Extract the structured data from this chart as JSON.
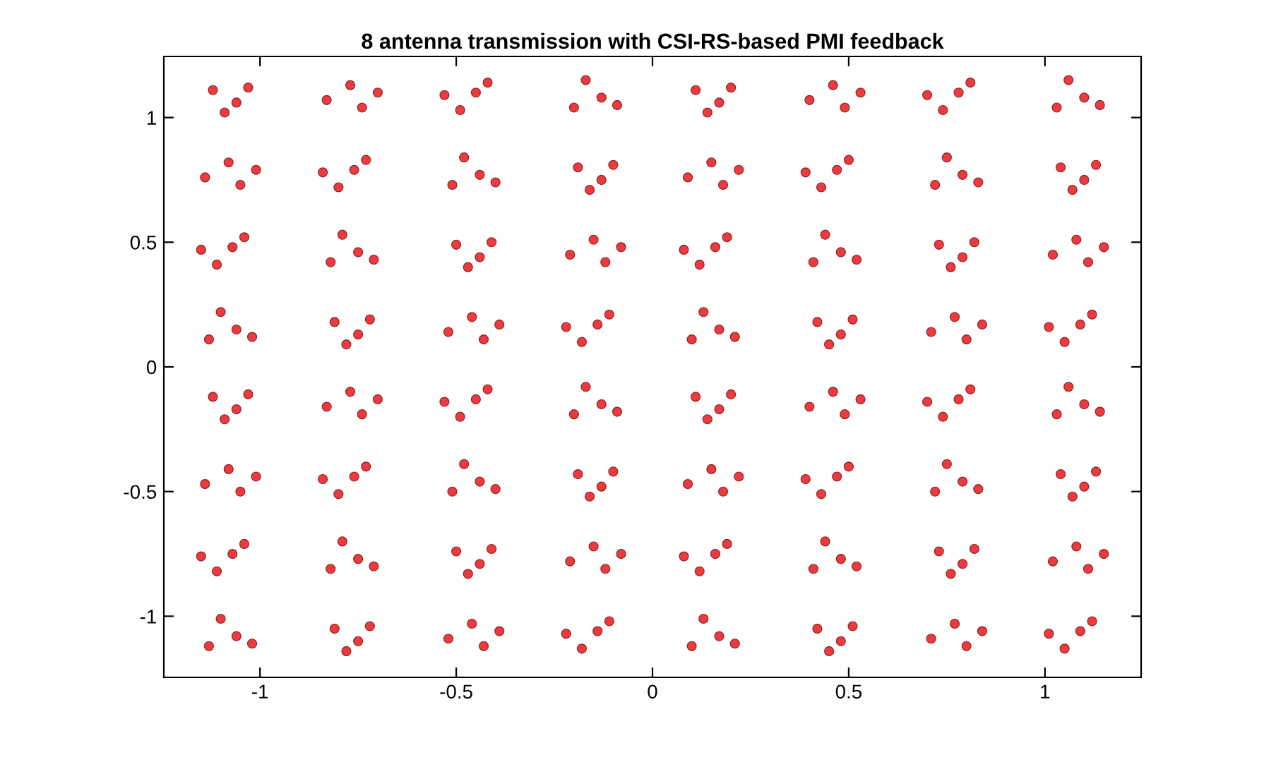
{
  "chart_data": {
    "type": "scatter",
    "title": "8 antenna transmission with CSI-RS-based PMI feedback",
    "xlim": [
      -1.245,
      1.245
    ],
    "ylim": [
      -1.245,
      1.245
    ],
    "xticks": [
      -1,
      -0.5,
      0,
      0.5,
      1
    ],
    "yticks": [
      -1,
      -0.5,
      0,
      0.5,
      1
    ],
    "grid": false,
    "legend": false,
    "marker": "circle",
    "series": [
      {
        "color": "#e8262b",
        "x": [
          -1.12,
          -1.06,
          -1.03,
          -1.09,
          -0.83,
          -0.77,
          -0.74,
          -0.7,
          -0.49,
          -0.45,
          -0.42,
          -0.53,
          -0.09,
          -0.17,
          -0.13,
          -0.2,
          0.11,
          0.17,
          0.2,
          0.14,
          0.4,
          0.46,
          0.49,
          0.53,
          0.74,
          0.78,
          0.81,
          0.7,
          1.14,
          1.06,
          1.1,
          1.03,
          -1.14,
          -1.08,
          -1.05,
          -1.01,
          -0.8,
          -0.76,
          -0.73,
          -0.84,
          -0.4,
          -0.48,
          -0.44,
          -0.51,
          -0.19,
          -0.13,
          -0.1,
          -0.16,
          0.09,
          0.15,
          0.18,
          0.22,
          0.43,
          0.47,
          0.5,
          0.39,
          0.83,
          0.75,
          0.79,
          0.72,
          1.04,
          1.1,
          1.13,
          1.07,
          -1.11,
          -1.07,
          -1.04,
          -1.15,
          -0.71,
          -0.79,
          -0.75,
          -0.82,
          -0.5,
          -0.44,
          -0.41,
          -0.47,
          -0.21,
          -0.15,
          -0.12,
          -0.08,
          0.12,
          0.16,
          0.19,
          0.08,
          0.52,
          0.44,
          0.48,
          0.41,
          0.73,
          0.79,
          0.82,
          0.76,
          1.02,
          1.08,
          1.11,
          1.15,
          -1.02,
          -1.1,
          -1.06,
          -1.13,
          -0.81,
          -0.75,
          -0.72,
          -0.78,
          -0.52,
          -0.46,
          -0.43,
          -0.39,
          -0.18,
          -0.14,
          -0.11,
          -0.22,
          0.21,
          0.13,
          0.17,
          0.1,
          0.42,
          0.48,
          0.51,
          0.45,
          0.71,
          0.77,
          0.8,
          0.84,
          1.05,
          1.09,
          1.12,
          1.01,
          -1.12,
          -1.06,
          -1.03,
          -1.09,
          -0.83,
          -0.77,
          -0.74,
          -0.7,
          -0.49,
          -0.45,
          -0.42,
          -0.53,
          -0.09,
          -0.17,
          -0.13,
          -0.2,
          0.11,
          0.17,
          0.2,
          0.14,
          0.4,
          0.46,
          0.49,
          0.53,
          0.74,
          0.78,
          0.81,
          0.7,
          1.14,
          1.06,
          1.1,
          1.03,
          -1.14,
          -1.08,
          -1.05,
          -1.01,
          -0.8,
          -0.76,
          -0.73,
          -0.84,
          -0.4,
          -0.48,
          -0.44,
          -0.51,
          -0.19,
          -0.13,
          -0.1,
          -0.16,
          0.09,
          0.15,
          0.18,
          0.22,
          0.43,
          0.47,
          0.5,
          0.39,
          0.83,
          0.75,
          0.79,
          0.72,
          1.04,
          1.1,
          1.13,
          1.07,
          -1.11,
          -1.07,
          -1.04,
          -1.15,
          -0.71,
          -0.79,
          -0.75,
          -0.82,
          -0.5,
          -0.44,
          -0.41,
          -0.47,
          -0.21,
          -0.15,
          -0.12,
          -0.08,
          0.12,
          0.16,
          0.19,
          0.08,
          0.52,
          0.44,
          0.48,
          0.41,
          0.73,
          0.79,
          0.82,
          0.76,
          1.02,
          1.08,
          1.11,
          1.15,
          -1.02,
          -1.1,
          -1.06,
          -1.13,
          -0.81,
          -0.75,
          -0.72,
          -0.78,
          -0.52,
          -0.46,
          -0.43,
          -0.39,
          -0.18,
          -0.14,
          -0.11,
          -0.22,
          0.21,
          0.13,
          0.17,
          0.1,
          0.42,
          0.48,
          0.51,
          0.45,
          0.71,
          0.77,
          0.8,
          0.84,
          1.05,
          1.09,
          1.12,
          1.01
        ],
        "values": [
          1.11,
          1.06,
          1.12,
          1.02,
          1.07,
          1.13,
          1.04,
          1.1,
          1.03,
          1.1,
          1.14,
          1.09,
          1.05,
          1.15,
          1.08,
          1.04,
          1.11,
          1.06,
          1.12,
          1.02,
          1.07,
          1.13,
          1.04,
          1.1,
          1.03,
          1.1,
          1.14,
          1.09,
          1.05,
          1.15,
          1.08,
          1.04,
          0.76,
          0.82,
          0.73,
          0.79,
          0.72,
          0.79,
          0.83,
          0.78,
          0.74,
          0.84,
          0.77,
          0.73,
          0.8,
          0.75,
          0.81,
          0.71,
          0.76,
          0.82,
          0.73,
          0.79,
          0.72,
          0.79,
          0.83,
          0.78,
          0.74,
          0.84,
          0.77,
          0.73,
          0.8,
          0.75,
          0.81,
          0.71,
          0.41,
          0.48,
          0.52,
          0.47,
          0.43,
          0.53,
          0.46,
          0.42,
          0.49,
          0.44,
          0.5,
          0.4,
          0.45,
          0.51,
          0.42,
          0.48,
          0.41,
          0.48,
          0.52,
          0.47,
          0.43,
          0.53,
          0.46,
          0.42,
          0.49,
          0.44,
          0.5,
          0.4,
          0.45,
          0.51,
          0.42,
          0.48,
          0.12,
          0.22,
          0.15,
          0.11,
          0.18,
          0.13,
          0.19,
          0.09,
          0.14,
          0.2,
          0.11,
          0.17,
          0.1,
          0.17,
          0.21,
          0.16,
          0.12,
          0.22,
          0.15,
          0.11,
          0.18,
          0.13,
          0.19,
          0.09,
          0.14,
          0.2,
          0.11,
          0.17,
          0.1,
          0.17,
          0.21,
          0.16,
          -0.12,
          -0.17,
          -0.11,
          -0.21,
          -0.16,
          -0.1,
          -0.19,
          -0.13,
          -0.2,
          -0.13,
          -0.09,
          -0.14,
          -0.18,
          -0.08,
          -0.15,
          -0.19,
          -0.12,
          -0.17,
          -0.11,
          -0.21,
          -0.16,
          -0.1,
          -0.19,
          -0.13,
          -0.2,
          -0.13,
          -0.09,
          -0.14,
          -0.18,
          -0.08,
          -0.15,
          -0.19,
          -0.47,
          -0.41,
          -0.5,
          -0.44,
          -0.51,
          -0.44,
          -0.4,
          -0.45,
          -0.49,
          -0.39,
          -0.46,
          -0.5,
          -0.43,
          -0.48,
          -0.42,
          -0.52,
          -0.47,
          -0.41,
          -0.5,
          -0.44,
          -0.51,
          -0.44,
          -0.4,
          -0.45,
          -0.49,
          -0.39,
          -0.46,
          -0.5,
          -0.43,
          -0.48,
          -0.42,
          -0.52,
          -0.82,
          -0.75,
          -0.71,
          -0.76,
          -0.8,
          -0.7,
          -0.77,
          -0.81,
          -0.74,
          -0.79,
          -0.73,
          -0.83,
          -0.78,
          -0.72,
          -0.81,
          -0.75,
          -0.82,
          -0.75,
          -0.71,
          -0.76,
          -0.8,
          -0.7,
          -0.77,
          -0.81,
          -0.74,
          -0.79,
          -0.73,
          -0.83,
          -0.78,
          -0.72,
          -0.81,
          -0.75,
          -1.11,
          -1.01,
          -1.08,
          -1.12,
          -1.05,
          -1.1,
          -1.04,
          -1.14,
          -1.09,
          -1.03,
          -1.12,
          -1.06,
          -1.13,
          -1.06,
          -1.02,
          -1.07,
          -1.11,
          -1.01,
          -1.08,
          -1.12,
          -1.05,
          -1.1,
          -1.04,
          -1.14,
          -1.09,
          -1.03,
          -1.12,
          -1.06,
          -1.13,
          -1.06,
          -1.02,
          -1.07
        ]
      }
    ]
  }
}
